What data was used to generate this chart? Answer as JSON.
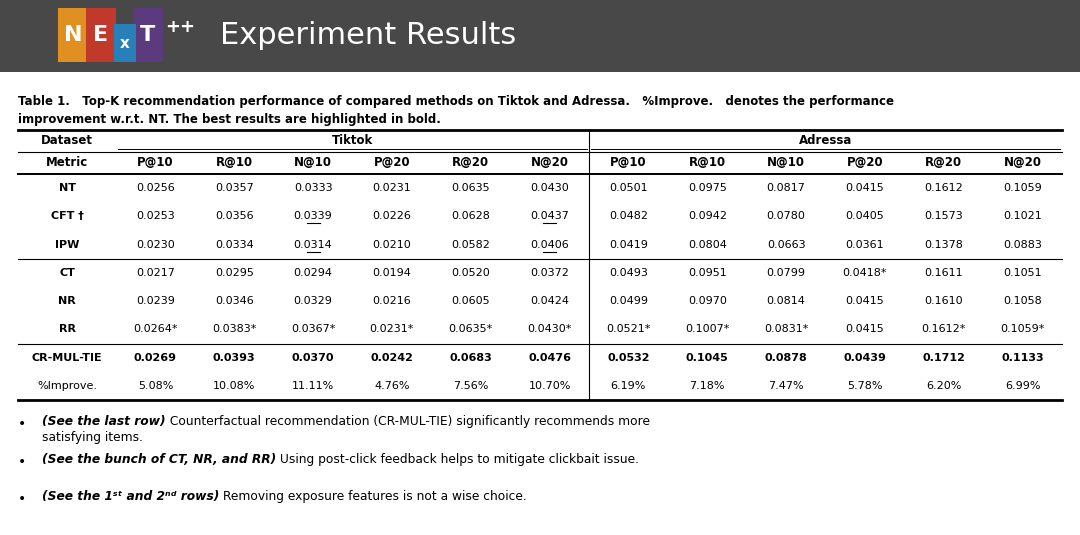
{
  "title": "Experiment Results",
  "header_bg": "#484848",
  "col_headers_row2": [
    "Metric",
    "P@10",
    "R@10",
    "N@10",
    "P@20",
    "R@20",
    "N@20",
    "P@10",
    "R@10",
    "N@10",
    "P@20",
    "R@20",
    "N@20"
  ],
  "rows": [
    [
      "NT",
      "0.0256",
      "0.0357",
      "0.0333",
      "0.0231",
      "0.0635",
      "0.0430",
      "0.0501",
      "0.0975",
      "0.0817",
      "0.0415",
      "0.1612",
      "0.1059"
    ],
    [
      "CFT †",
      "0.0253",
      "0.0356",
      "0.0339",
      "0.0226",
      "0.0628",
      "0.0437",
      "0.0482",
      "0.0942",
      "0.0780",
      "0.0405",
      "0.1573",
      "0.1021"
    ],
    [
      "IPW",
      "0.0230",
      "0.0334",
      "0.0314",
      "0.0210",
      "0.0582",
      "0.0406",
      "0.0419",
      "0.0804",
      "0.0663",
      "0.0361",
      "0.1378",
      "0.0883"
    ],
    [
      "CT",
      "0.0217",
      "0.0295",
      "0.0294",
      "0.0194",
      "0.0520",
      "0.0372",
      "0.0493",
      "0.0951",
      "0.0799",
      "0.0418*",
      "0.1611",
      "0.1051"
    ],
    [
      "NR",
      "0.0239",
      "0.0346",
      "0.0329",
      "0.0216",
      "0.0605",
      "0.0424",
      "0.0499",
      "0.0970",
      "0.0814",
      "0.0415",
      "0.1610",
      "0.1058"
    ],
    [
      "RR",
      "0.0264*",
      "0.0383*",
      "0.0367*",
      "0.0231*",
      "0.0635*",
      "0.0430*",
      "0.0521*",
      "0.1007*",
      "0.0831*",
      "0.0415",
      "0.1612*",
      "0.1059*"
    ],
    [
      "CR-MUL-TIE",
      "0.0269",
      "0.0393",
      "0.0370",
      "0.0242",
      "0.0683",
      "0.0476",
      "0.0532",
      "0.1045",
      "0.0878",
      "0.0439",
      "0.1712",
      "0.1133"
    ],
    [
      "%Improve.",
      "5.08%",
      "10.08%",
      "11.11%",
      "4.76%",
      "7.56%",
      "10.70%",
      "6.19%",
      "7.18%",
      "7.47%",
      "5.78%",
      "6.20%",
      "6.99%"
    ]
  ],
  "bold_row_index": 6,
  "underline_cells": [
    [
      1,
      3
    ],
    [
      1,
      6
    ],
    [
      2,
      3
    ],
    [
      2,
      6
    ]
  ],
  "separator_after_data_rows": [
    2,
    5
  ],
  "bg_color": "#ffffff",
  "logo_N_bg": "#e09020",
  "logo_E_bg": "#c0392b",
  "logo_X_bg": "#2980b9",
  "logo_T_bg": "#5b3a7e"
}
